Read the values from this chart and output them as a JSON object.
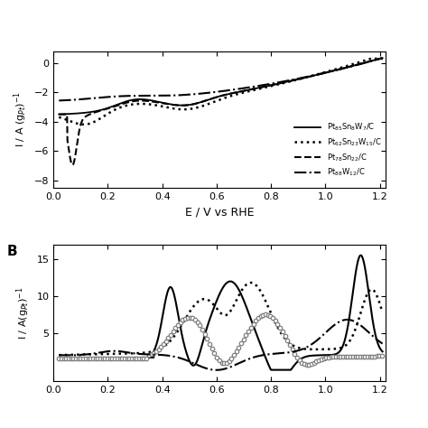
{
  "panel_A": {
    "xlabel": "E / V vs RHE",
    "ylabel": "I / A (g$_{Pt}$)$^{-1}$",
    "xlim": [
      0.0,
      1.22
    ],
    "ylim": [
      -8.5,
      0.8
    ],
    "yticks": [
      0,
      -2,
      -4,
      -6,
      -8
    ],
    "xticks": [
      0.0,
      0.2,
      0.4,
      0.6,
      0.8,
      1.0,
      1.2
    ]
  },
  "panel_B": {
    "label": "B",
    "ylabel": "I / A(g$_{Pt}$)$^{-1}$",
    "xlim": [
      0.0,
      1.22
    ],
    "ylim": [
      -1.5,
      17.0
    ],
    "yticks": [
      5,
      10,
      15
    ],
    "xticks": [
      0.0,
      0.2,
      0.4,
      0.6,
      0.8,
      1.0,
      1.2
    ]
  }
}
